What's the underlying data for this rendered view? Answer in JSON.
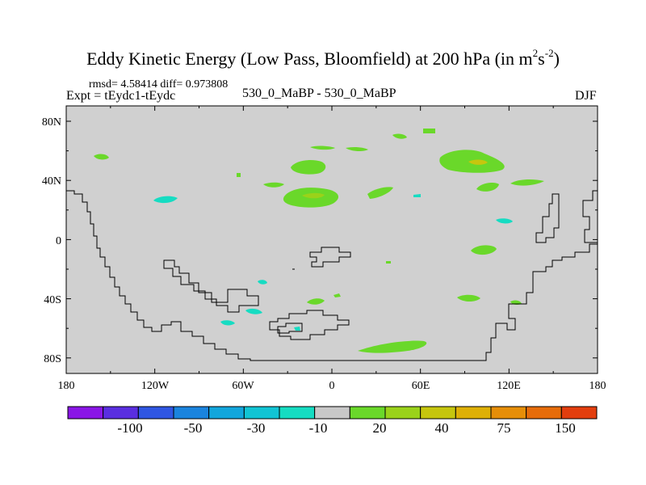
{
  "title": {
    "main": "Eddy Kinetic Energy (Low Pass, Bloomfield) at 200 hPa (in m",
    "sup1": "2",
    "mid": "s",
    "sup2": "-2",
    "close": ")"
  },
  "stats": "rmsd= 4.58414 diff= 0.973808",
  "expt": "Expt = tEydc1-tEydc",
  "center_label": "530_0_MaBP - 530_0_MaBP",
  "season": "DJF",
  "map": {
    "background_color": "#d0d0d0",
    "lat_labels": [
      "80N",
      "40N",
      "0",
      "40S",
      "80S"
    ],
    "lon_labels": [
      "180",
      "120W",
      "60W",
      "0",
      "60E",
      "120E",
      "180"
    ]
  },
  "colorbar": {
    "colors": [
      "#8a16e6",
      "#5a2ee0",
      "#2f56e2",
      "#1a84de",
      "#12a6dc",
      "#11c4d4",
      "#16dcc2",
      "#c8c8c8",
      "#6ad82a",
      "#9ad21a",
      "#c6c60e",
      "#deb006",
      "#e68e08",
      "#e66c0a",
      "#e23e0e"
    ],
    "labels": [
      "-100",
      "-50",
      "-30",
      "-10",
      "20",
      "40",
      "75",
      "150"
    ]
  }
}
